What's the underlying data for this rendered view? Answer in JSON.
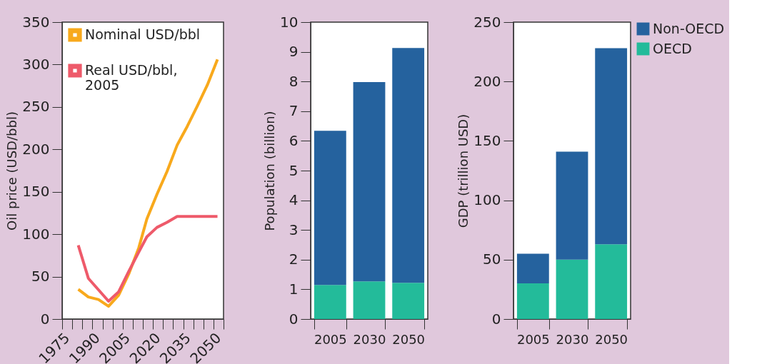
{
  "chart_data": [
    {
      "type": "line",
      "ylabel": "Oil price (USD/bbl)",
      "xlim": [
        1975,
        2055
      ],
      "ylim": [
        0,
        350
      ],
      "xticks": [
        1975,
        {
          "value": 1980,
          "label": null
        },
        {
          "value": 1985,
          "label": null
        },
        1990,
        {
          "value": 1995,
          "label": null
        },
        {
          "value": 2000,
          "label": null
        },
        2005,
        {
          "value": 2010,
          "label": null
        },
        {
          "value": 2015,
          "label": null
        },
        2020,
        {
          "value": 2025,
          "label": null
        },
        {
          "value": 2030,
          "label": null
        },
        2035,
        {
          "value": 2040,
          "label": null
        },
        {
          "value": 2045,
          "label": null
        },
        2050,
        {
          "value": 2055,
          "label": null
        }
      ],
      "yticks": [
        0,
        50,
        100,
        150,
        200,
        250,
        300,
        350
      ],
      "grid": false,
      "legend": "top left",
      "marker": "none",
      "line_style": "solid",
      "series": [
        {
          "name": "Nominal USD/bbl",
          "color": "#f8a91c",
          "x": [
            1983,
            1988,
            1993,
            1998,
            2003,
            2008,
            2013,
            2017,
            2022,
            2027,
            2032,
            2037,
            2042,
            2047,
            2052
          ],
          "values": [
            35,
            26,
            23,
            15,
            28,
            53,
            84,
            118,
            147,
            174,
            205,
            227,
            251,
            276,
            306
          ]
        },
        {
          "name": "Real USD/bbl, 2005",
          "color": "#ee5a6a",
          "x": [
            1983,
            1988,
            1998,
            2003,
            2008,
            2013,
            2017,
            2022,
            2027,
            2032,
            2047,
            2052
          ],
          "values": [
            87,
            48,
            21,
            32,
            56,
            79,
            97,
            108,
            114,
            121,
            121,
            121
          ]
        }
      ]
    },
    {
      "type": "bar",
      "stacked": true,
      "ylabel": "Population (billion)",
      "categories": [
        "2005",
        "2030",
        "2050"
      ],
      "ylim": [
        0,
        10
      ],
      "yticks": [
        0,
        1,
        2,
        3,
        4,
        5,
        6,
        7,
        8,
        9,
        10
      ],
      "grid": false,
      "legend": false,
      "series": [
        {
          "color": "#23bb9a",
          "values": [
            1.15,
            1.27,
            1.22
          ]
        },
        {
          "color": "#25629e",
          "values": [
            5.19,
            6.71,
            7.91
          ]
        }
      ]
    },
    {
      "type": "bar",
      "stacked": true,
      "ylabel": "GDP (trillion USD)",
      "categories": [
        "2005",
        "2030",
        "2050"
      ],
      "ylim": [
        0,
        250
      ],
      "yticks": [
        0,
        50,
        100,
        150,
        200,
        250
      ],
      "grid": false,
      "legend": "top right",
      "series": [
        {
          "name": "OECD",
          "color": "#23bb9a",
          "values": [
            30,
            50,
            63
          ]
        },
        {
          "name": "Non-OECD",
          "color": "#25629e",
          "values": [
            25,
            91,
            165
          ]
        }
      ]
    }
  ]
}
